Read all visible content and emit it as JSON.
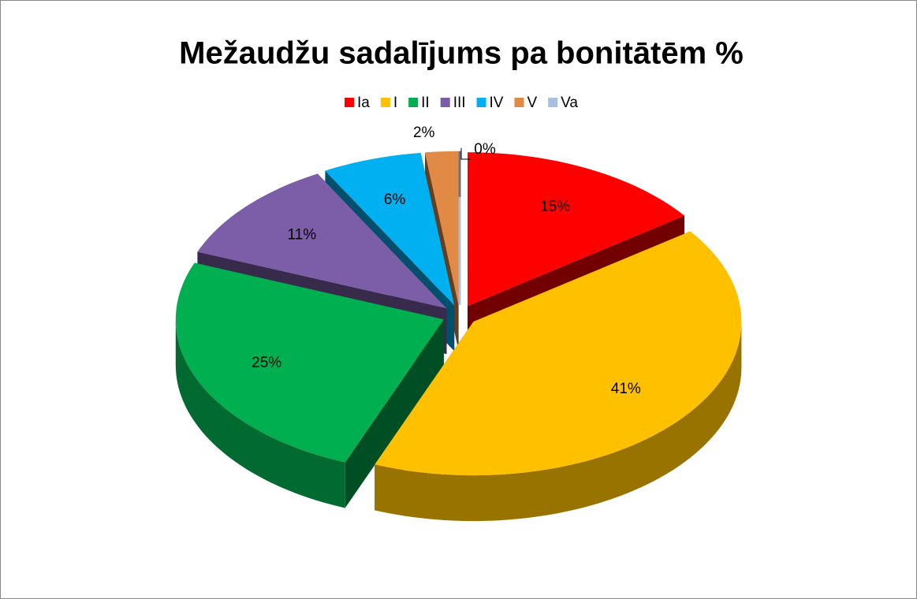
{
  "chart_data": {
    "type": "pie3d",
    "title": "Mežaudžu sadalījums pa bonitātēm %",
    "categories": [
      "Ia",
      "I",
      "II",
      "III",
      "IV",
      "V",
      "Va"
    ],
    "values": [
      15,
      41,
      25,
      11,
      6,
      2,
      0
    ],
    "value_labels": [
      "15%",
      "41%",
      "25%",
      "11%",
      "6%",
      "2%",
      "0%"
    ],
    "colors": [
      "#ff0000",
      "#ffc000",
      "#00b050",
      "#7b5ea7",
      "#00b0f0",
      "#e08a46",
      "#a9bfe0"
    ],
    "legend": "top"
  }
}
